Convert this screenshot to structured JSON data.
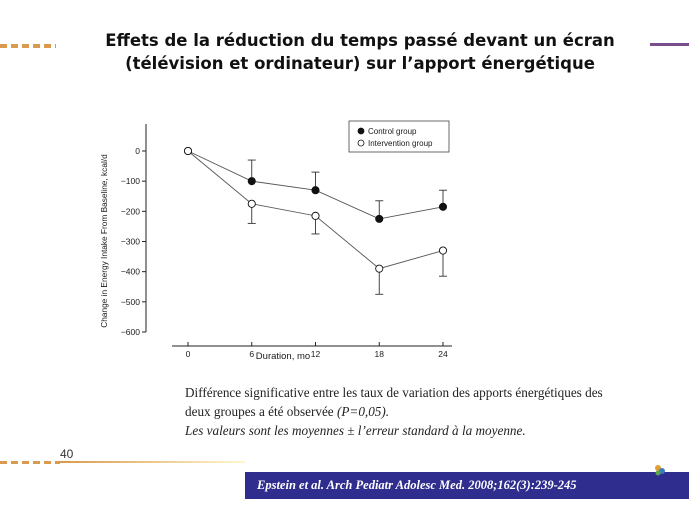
{
  "slide": {
    "title_line1": "Effets de la réduction du temps passé devant un écran",
    "title_line2": "(télévision et ordinateur) sur l’apport énergétique",
    "caption_line1": "Différence significative entre les taux de variation des apports énergétiques des",
    "caption_line2_start": "deux groupes a été observée ",
    "caption_line2_pval": "(P=0,05).",
    "caption_line3": "Les valeurs sont les moyennes ±  l’erreur standard à la moyenne.",
    "page_number": "40",
    "citation": "Epstein et al. Arch Pediatr Adolesc Med. 2008;162(3):239-245",
    "colors": {
      "citation_bar": "#2f2d8d",
      "accent_orange": "#d99a4e",
      "accent_purple": "#7a4e8a"
    }
  },
  "chart_data": {
    "type": "line",
    "title": "",
    "xlabel": "Duration, mo",
    "ylabel": "Change in Energy Intake From Baseline, kcal/d",
    "x": [
      0,
      6,
      12,
      18,
      24
    ],
    "xticks": [
      "0",
      "6",
      "12",
      "18",
      "24"
    ],
    "yticks": [
      "0",
      "−100",
      "−200",
      "−300",
      "−400",
      "−500",
      "−600"
    ],
    "ytick_values": [
      0,
      -100,
      -200,
      -300,
      -400,
      -500,
      -600
    ],
    "ylim": [
      -600,
      0
    ],
    "xlim": [
      0,
      24
    ],
    "grid": false,
    "legend_position": "top-right",
    "series": [
      {
        "name": "Control group",
        "marker": "filled",
        "values": [
          0,
          -100,
          -130,
          -225,
          -185
        ],
        "error": [
          0,
          70,
          60,
          60,
          55
        ]
      },
      {
        "name": "Intervention group",
        "marker": "open",
        "values": [
          0,
          -175,
          -215,
          -390,
          -330
        ],
        "error": [
          0,
          65,
          60,
          85,
          85
        ]
      }
    ]
  }
}
